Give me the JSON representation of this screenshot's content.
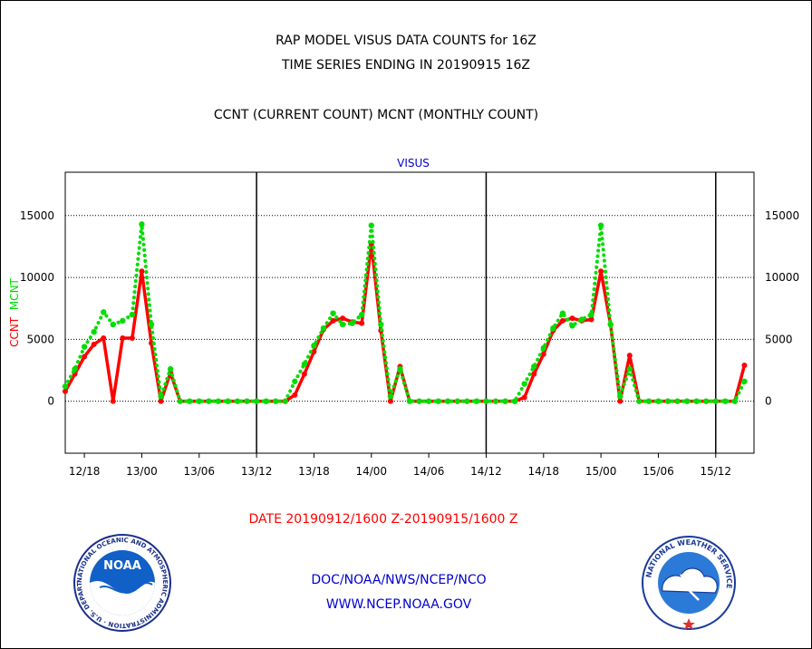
{
  "header": {
    "title_line1": "RAP MODEL VISUS DATA COUNTS for 16Z",
    "title_line2": "TIME SERIES ENDING IN 20190915 16Z",
    "subtitle": "CCNT (CURRENT COUNT) MCNT (MONTHLY COUNT)"
  },
  "footer": {
    "date_range": "DATE 20190912/1600 Z-20190915/1600 Z",
    "agency": "DOC/NOAA/NWS/NCEP/NCO",
    "website": "WWW.NCEP.NOAA.GOV"
  },
  "logos": {
    "noaa": {
      "center_text": "NOAA",
      "ring_text": "NATIONAL OCEANIC AND ATMOSPHERIC ADMINISTRATION · U.S. DEPARTMENT OF COMMERCE"
    },
    "nws": {
      "ring_text": "NATIONAL WEATHER SERVICE"
    }
  },
  "colors": {
    "ccnt": "#ff0000",
    "mcnt": "#00dd00",
    "plot_title": "#0000cc",
    "footer_link": "#0000cc",
    "date_text": "#ff0000"
  },
  "chart_data": {
    "type": "line",
    "title": "VISUS",
    "ylabel_left": [
      {
        "text": "CCNT",
        "color": "#ff0000"
      },
      {
        "text": "MCNT",
        "color": "#00dd00"
      }
    ],
    "ylim": [
      -4200,
      18500
    ],
    "yticks": [
      0,
      5000,
      10000,
      15000
    ],
    "xlim": [
      0,
      72
    ],
    "xticks": [
      {
        "x": 2,
        "label": "12/18"
      },
      {
        "x": 8,
        "label": "13/00"
      },
      {
        "x": 14,
        "label": "13/06"
      },
      {
        "x": 20,
        "label": "13/12"
      },
      {
        "x": 26,
        "label": "13/18"
      },
      {
        "x": 32,
        "label": "14/00"
      },
      {
        "x": 38,
        "label": "14/06"
      },
      {
        "x": 44,
        "label": "14/12"
      },
      {
        "x": 50,
        "label": "14/18"
      },
      {
        "x": 56,
        "label": "15/00"
      },
      {
        "x": 62,
        "label": "15/06"
      },
      {
        "x": 68,
        "label": "15/12"
      }
    ],
    "day_separators": [
      20,
      44,
      68
    ],
    "grid": "horizontal dotted",
    "series": [
      {
        "name": "CCNT",
        "style": "solid",
        "values": [
          800,
          2200,
          3600,
          4600,
          5100,
          0,
          5100,
          5100,
          10500,
          4700,
          0,
          2300,
          0,
          0,
          0,
          0,
          0,
          0,
          0,
          0,
          0,
          0,
          0,
          0,
          500,
          2200,
          4000,
          5800,
          6500,
          6700,
          6400,
          6300,
          12700,
          5700,
          0,
          2800,
          0,
          0,
          0,
          0,
          0,
          0,
          0,
          0,
          0,
          0,
          0,
          0,
          300,
          2200,
          3800,
          5700,
          6500,
          6700,
          6500,
          6600,
          10500,
          6200,
          0,
          3700,
          0,
          0,
          0,
          0,
          0,
          0,
          0,
          0,
          0,
          0,
          0,
          2900
        ]
      },
      {
        "name": "MCNT",
        "style": "dotted",
        "values": [
          1200,
          2600,
          4400,
          5600,
          7200,
          6200,
          6500,
          7000,
          14300,
          6200,
          400,
          2600,
          0,
          0,
          0,
          0,
          0,
          0,
          0,
          0,
          0,
          0,
          0,
          0,
          1600,
          3000,
          4500,
          5900,
          7100,
          6200,
          6300,
          7000,
          14200,
          6200,
          400,
          2600,
          0,
          0,
          0,
          0,
          0,
          0,
          0,
          0,
          0,
          0,
          0,
          0,
          1400,
          2800,
          4300,
          5900,
          7100,
          6100,
          6600,
          7000,
          14200,
          6200,
          400,
          2600,
          0,
          0,
          0,
          0,
          0,
          0,
          0,
          0,
          0,
          0,
          0,
          1600
        ]
      }
    ]
  }
}
